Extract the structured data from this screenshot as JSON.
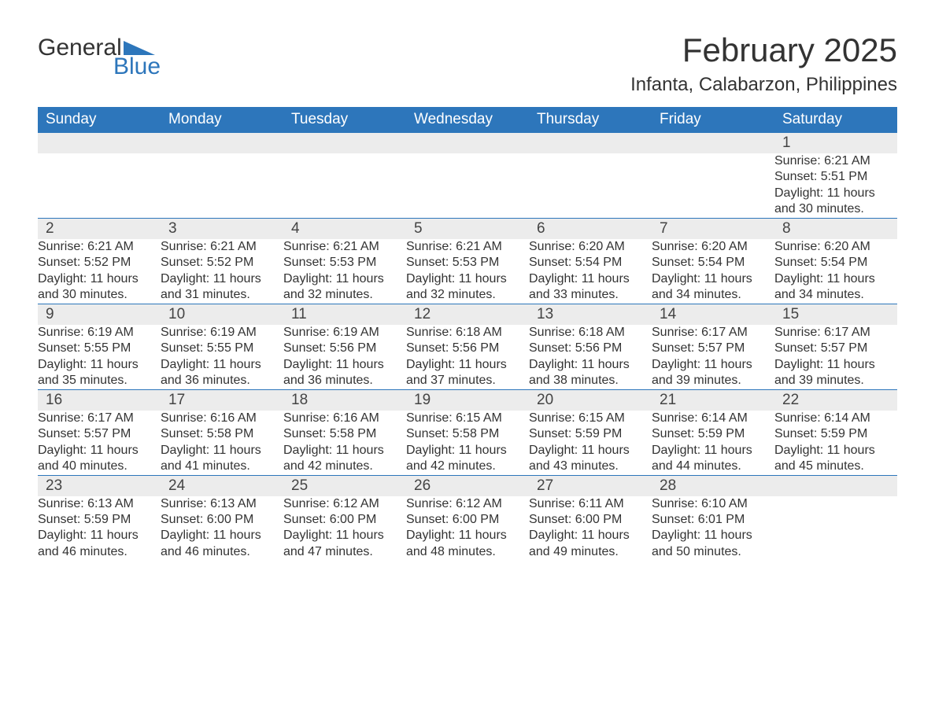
{
  "brand": {
    "general": "General",
    "blue": "Blue",
    "flag_color": "#2d76bb"
  },
  "title": "February 2025",
  "location": "Infanta, Calabarzon, Philippines",
  "colors": {
    "header_bg": "#2d76bb",
    "header_text": "#ffffff",
    "row_accent": "#2d76bb",
    "daynum_bg": "#ececec",
    "text": "#333333",
    "background": "#ffffff"
  },
  "fonts": {
    "title_size": 42,
    "location_size": 24,
    "weekday_size": 19,
    "daynum_size": 19,
    "detail_size": 16
  },
  "weekdays": [
    "Sunday",
    "Monday",
    "Tuesday",
    "Wednesday",
    "Thursday",
    "Friday",
    "Saturday"
  ],
  "weeks": [
    [
      null,
      null,
      null,
      null,
      null,
      null,
      {
        "n": "1",
        "sunrise": "Sunrise: 6:21 AM",
        "sunset": "Sunset: 5:51 PM",
        "daylight": "Daylight: 11 hours and 30 minutes."
      }
    ],
    [
      {
        "n": "2",
        "sunrise": "Sunrise: 6:21 AM",
        "sunset": "Sunset: 5:52 PM",
        "daylight": "Daylight: 11 hours and 30 minutes."
      },
      {
        "n": "3",
        "sunrise": "Sunrise: 6:21 AM",
        "sunset": "Sunset: 5:52 PM",
        "daylight": "Daylight: 11 hours and 31 minutes."
      },
      {
        "n": "4",
        "sunrise": "Sunrise: 6:21 AM",
        "sunset": "Sunset: 5:53 PM",
        "daylight": "Daylight: 11 hours and 32 minutes."
      },
      {
        "n": "5",
        "sunrise": "Sunrise: 6:21 AM",
        "sunset": "Sunset: 5:53 PM",
        "daylight": "Daylight: 11 hours and 32 minutes."
      },
      {
        "n": "6",
        "sunrise": "Sunrise: 6:20 AM",
        "sunset": "Sunset: 5:54 PM",
        "daylight": "Daylight: 11 hours and 33 minutes."
      },
      {
        "n": "7",
        "sunrise": "Sunrise: 6:20 AM",
        "sunset": "Sunset: 5:54 PM",
        "daylight": "Daylight: 11 hours and 34 minutes."
      },
      {
        "n": "8",
        "sunrise": "Sunrise: 6:20 AM",
        "sunset": "Sunset: 5:54 PM",
        "daylight": "Daylight: 11 hours and 34 minutes."
      }
    ],
    [
      {
        "n": "9",
        "sunrise": "Sunrise: 6:19 AM",
        "sunset": "Sunset: 5:55 PM",
        "daylight": "Daylight: 11 hours and 35 minutes."
      },
      {
        "n": "10",
        "sunrise": "Sunrise: 6:19 AM",
        "sunset": "Sunset: 5:55 PM",
        "daylight": "Daylight: 11 hours and 36 minutes."
      },
      {
        "n": "11",
        "sunrise": "Sunrise: 6:19 AM",
        "sunset": "Sunset: 5:56 PM",
        "daylight": "Daylight: 11 hours and 36 minutes."
      },
      {
        "n": "12",
        "sunrise": "Sunrise: 6:18 AM",
        "sunset": "Sunset: 5:56 PM",
        "daylight": "Daylight: 11 hours and 37 minutes."
      },
      {
        "n": "13",
        "sunrise": "Sunrise: 6:18 AM",
        "sunset": "Sunset: 5:56 PM",
        "daylight": "Daylight: 11 hours and 38 minutes."
      },
      {
        "n": "14",
        "sunrise": "Sunrise: 6:17 AM",
        "sunset": "Sunset: 5:57 PM",
        "daylight": "Daylight: 11 hours and 39 minutes."
      },
      {
        "n": "15",
        "sunrise": "Sunrise: 6:17 AM",
        "sunset": "Sunset: 5:57 PM",
        "daylight": "Daylight: 11 hours and 39 minutes."
      }
    ],
    [
      {
        "n": "16",
        "sunrise": "Sunrise: 6:17 AM",
        "sunset": "Sunset: 5:57 PM",
        "daylight": "Daylight: 11 hours and 40 minutes."
      },
      {
        "n": "17",
        "sunrise": "Sunrise: 6:16 AM",
        "sunset": "Sunset: 5:58 PM",
        "daylight": "Daylight: 11 hours and 41 minutes."
      },
      {
        "n": "18",
        "sunrise": "Sunrise: 6:16 AM",
        "sunset": "Sunset: 5:58 PM",
        "daylight": "Daylight: 11 hours and 42 minutes."
      },
      {
        "n": "19",
        "sunrise": "Sunrise: 6:15 AM",
        "sunset": "Sunset: 5:58 PM",
        "daylight": "Daylight: 11 hours and 42 minutes."
      },
      {
        "n": "20",
        "sunrise": "Sunrise: 6:15 AM",
        "sunset": "Sunset: 5:59 PM",
        "daylight": "Daylight: 11 hours and 43 minutes."
      },
      {
        "n": "21",
        "sunrise": "Sunrise: 6:14 AM",
        "sunset": "Sunset: 5:59 PM",
        "daylight": "Daylight: 11 hours and 44 minutes."
      },
      {
        "n": "22",
        "sunrise": "Sunrise: 6:14 AM",
        "sunset": "Sunset: 5:59 PM",
        "daylight": "Daylight: 11 hours and 45 minutes."
      }
    ],
    [
      {
        "n": "23",
        "sunrise": "Sunrise: 6:13 AM",
        "sunset": "Sunset: 5:59 PM",
        "daylight": "Daylight: 11 hours and 46 minutes."
      },
      {
        "n": "24",
        "sunrise": "Sunrise: 6:13 AM",
        "sunset": "Sunset: 6:00 PM",
        "daylight": "Daylight: 11 hours and 46 minutes."
      },
      {
        "n": "25",
        "sunrise": "Sunrise: 6:12 AM",
        "sunset": "Sunset: 6:00 PM",
        "daylight": "Daylight: 11 hours and 47 minutes."
      },
      {
        "n": "26",
        "sunrise": "Sunrise: 6:12 AM",
        "sunset": "Sunset: 6:00 PM",
        "daylight": "Daylight: 11 hours and 48 minutes."
      },
      {
        "n": "27",
        "sunrise": "Sunrise: 6:11 AM",
        "sunset": "Sunset: 6:00 PM",
        "daylight": "Daylight: 11 hours and 49 minutes."
      },
      {
        "n": "28",
        "sunrise": "Sunrise: 6:10 AM",
        "sunset": "Sunset: 6:01 PM",
        "daylight": "Daylight: 11 hours and 50 minutes."
      },
      null
    ]
  ]
}
